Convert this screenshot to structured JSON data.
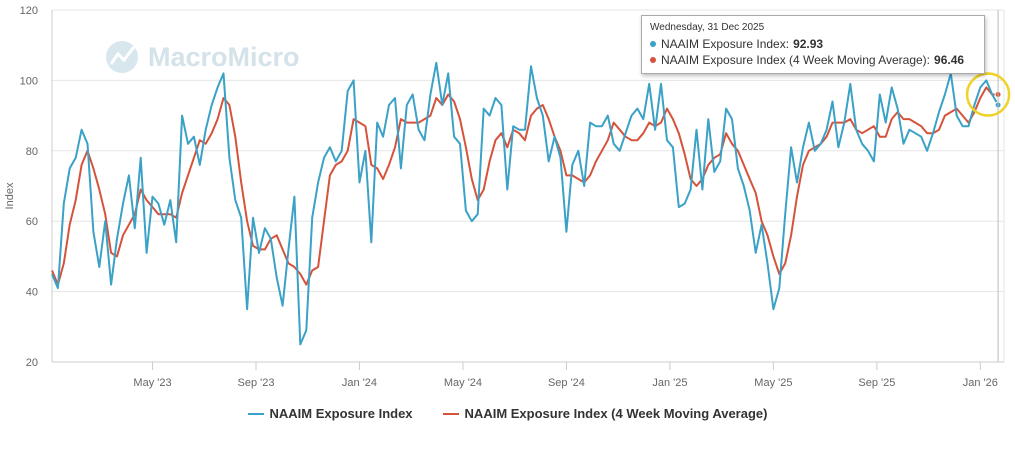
{
  "watermark": "MacroMicro",
  "chart_data": {
    "type": "line",
    "title": "",
    "xlabel": "",
    "ylabel": "Index",
    "ylim": [
      20,
      120
    ],
    "yticks": [
      20,
      40,
      60,
      80,
      100,
      120
    ],
    "xlim": [
      0,
      161
    ],
    "xticks": [
      {
        "label": "May '23",
        "x": 17
      },
      {
        "label": "Sep '23",
        "x": 34.5
      },
      {
        "label": "Jan '24",
        "x": 52
      },
      {
        "label": "May '24",
        "x": 69.5
      },
      {
        "label": "Sep '24",
        "x": 87
      },
      {
        "label": "Jan '25",
        "x": 104.5
      },
      {
        "label": "May '25",
        "x": 122
      },
      {
        "label": "Sep '25",
        "x": 139.5
      },
      {
        "label": "Jan '26",
        "x": 157
      }
    ],
    "series": [
      {
        "name": "NAAIM Exposure Index",
        "color": "#3aa1c7",
        "values": [
          45,
          41,
          65,
          75,
          78,
          86,
          82,
          57,
          47,
          60,
          42,
          55,
          65,
          73,
          58,
          78,
          51,
          67,
          65,
          59,
          66,
          54,
          90,
          82,
          84,
          76,
          86,
          93,
          98,
          102,
          78,
          66,
          61,
          35,
          61,
          51,
          58,
          55,
          44,
          36,
          52,
          67,
          25,
          29,
          61,
          71,
          78,
          81,
          77,
          80,
          97,
          100,
          71,
          80,
          54,
          88,
          84,
          93,
          95,
          75,
          93,
          96,
          86,
          83,
          96,
          105,
          93,
          102,
          84,
          82,
          63,
          60,
          62,
          92,
          90,
          95,
          93,
          69,
          87,
          86,
          86,
          104,
          95,
          90,
          77,
          84,
          78,
          57,
          76,
          80,
          70,
          88,
          87,
          87,
          90,
          82,
          80,
          85,
          90,
          92,
          89,
          99,
          86,
          99,
          83,
          81,
          64,
          65,
          69,
          86,
          69,
          89,
          74,
          77,
          92,
          89,
          75,
          70,
          63,
          51,
          59,
          48,
          35,
          41,
          62,
          81,
          71,
          81,
          88,
          80,
          82,
          86,
          94,
          81,
          88,
          99,
          86,
          82,
          80,
          77,
          96,
          88,
          98,
          92,
          82,
          86,
          85,
          84,
          80,
          85,
          91,
          96,
          102,
          90,
          87,
          87,
          93,
          98,
          100,
          96,
          93
        ]
      },
      {
        "name": "NAAIM Exposure Index (4 Week Moving Average)",
        "color": "#d5533b",
        "values": [
          46,
          42,
          48,
          59,
          66,
          76,
          80,
          75,
          69,
          62,
          51,
          50,
          56,
          59,
          62,
          69,
          66,
          64,
          62,
          62,
          62,
          61,
          68,
          73,
          78,
          83,
          82,
          85,
          89,
          95,
          93,
          84,
          71,
          60,
          53,
          52,
          52,
          55,
          56,
          52,
          48,
          47,
          45,
          42,
          46,
          47,
          60,
          73,
          76,
          77,
          80,
          89,
          88,
          87,
          76,
          75,
          72,
          76,
          81,
          89,
          88,
          88,
          88,
          89,
          90,
          95,
          93,
          96,
          94,
          89,
          81,
          72,
          66,
          69,
          77,
          83,
          85,
          81,
          86,
          85,
          83,
          90,
          92,
          93,
          89,
          84,
          80,
          73,
          73,
          72,
          71,
          73,
          77,
          80,
          83,
          88,
          86,
          84,
          83,
          83,
          85,
          88,
          87,
          88,
          92,
          89,
          85,
          79,
          72,
          70,
          72,
          76,
          78,
          79,
          85,
          82,
          80,
          76,
          72,
          68,
          60,
          56,
          50,
          45,
          48,
          56,
          67,
          76,
          80,
          81,
          82,
          84,
          88,
          88,
          88,
          89,
          86,
          85,
          86,
          87,
          84,
          84,
          89,
          91,
          89,
          89,
          88,
          87,
          85,
          85,
          86,
          90,
          91,
          92,
          90,
          88,
          91,
          95,
          98,
          96,
          96
        ]
      }
    ]
  },
  "tooltip": {
    "date": "Wednesday, 31 Dec 2025",
    "rows": [
      {
        "label": "NAAIM Exposure Index:",
        "value": "92.93",
        "color": "#3aa1c7"
      },
      {
        "label": "NAAIM Exposure Index (4 Week Moving Average):",
        "value": "96.46",
        "color": "#d5533b"
      }
    ]
  },
  "legend": {
    "items": [
      {
        "label": "NAAIM Exposure Index",
        "color": "#3aa1c7"
      },
      {
        "label": "NAAIM Exposure Index (4 Week Moving Average)",
        "color": "#d5533b"
      }
    ]
  },
  "highlight_color": "#f0d226"
}
